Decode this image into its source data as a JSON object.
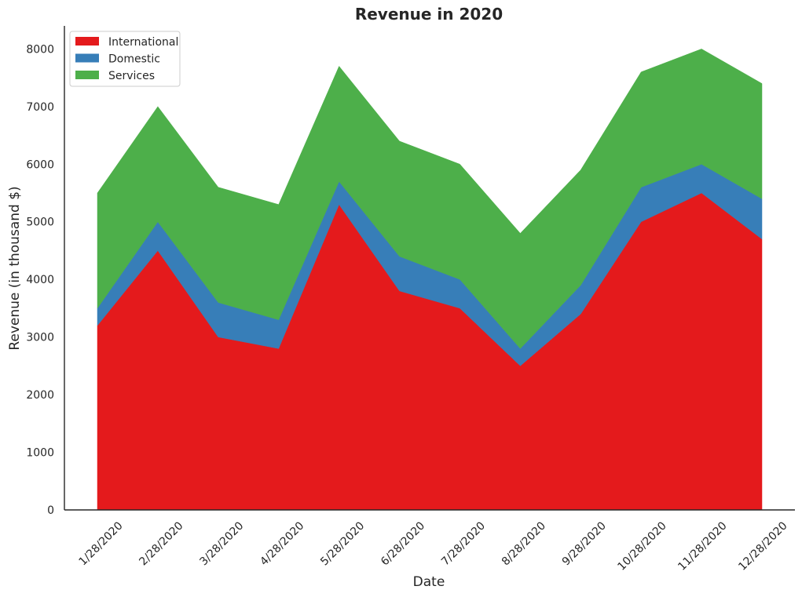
{
  "chart_data": {
    "type": "area",
    "stacked": true,
    "title": "Revenue in 2020",
    "xlabel": "Date",
    "ylabel": "Revenue (in thousand $)",
    "categories": [
      "1/28/2020",
      "2/28/2020",
      "3/28/2020",
      "4/28/2020",
      "5/28/2020",
      "6/28/2020",
      "7/28/2020",
      "8/28/2020",
      "9/28/2020",
      "10/28/2020",
      "11/28/2020",
      "12/28/2020"
    ],
    "series": [
      {
        "name": "International",
        "color": "#e41a1c",
        "values": [
          3200,
          4500,
          3000,
          2800,
          5300,
          3800,
          3500,
          2500,
          3400,
          5000,
          5500,
          4700
        ]
      },
      {
        "name": "Domestic",
        "color": "#377eb8",
        "values": [
          300,
          500,
          600,
          500,
          400,
          600,
          500,
          300,
          500,
          600,
          500,
          700
        ]
      },
      {
        "name": "Services",
        "color": "#4daf4a",
        "values": [
          2000,
          2000,
          2000,
          2000,
          2000,
          2000,
          2000,
          2000,
          2000,
          2000,
          2000,
          2000
        ]
      }
    ],
    "ylim": [
      0,
      8400
    ],
    "yticks": [
      0,
      1000,
      2000,
      3000,
      4000,
      5000,
      6000,
      7000,
      8000
    ],
    "grid": false,
    "legend_position": "top-left"
  }
}
